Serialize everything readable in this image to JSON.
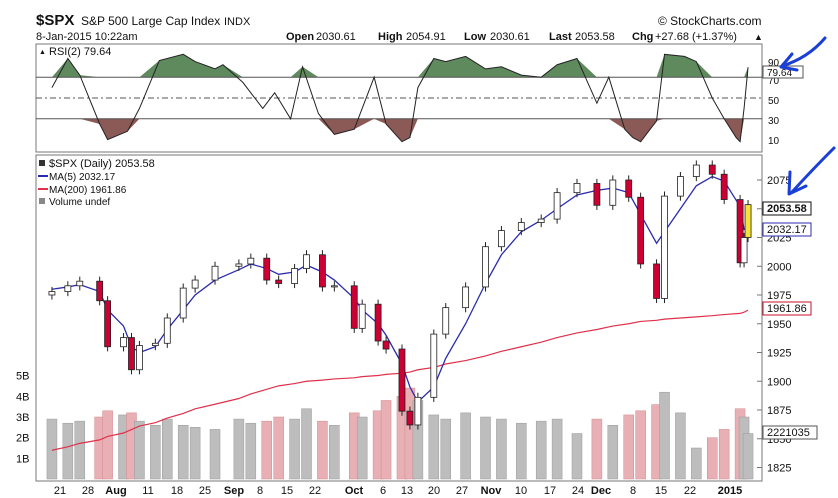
{
  "header": {
    "symbol": "$SPX",
    "name": "S&P 500 Large Cap Index",
    "exchange": "INDX",
    "date": "8-Jan-2015 10:22am",
    "brand": "© StockCharts.com",
    "open_label": "Open",
    "open": "2030.61",
    "high_label": "High",
    "high": "2054.91",
    "low_label": "Low",
    "low": "2030.61",
    "last_label": "Last",
    "last": "2053.58",
    "chg_label": "Chg",
    "chg": "+27.68 (+1.37%)",
    "chg_arrow": "▲"
  },
  "rsi_panel": {
    "legend_marker": "▲",
    "legend": "RSI(2) 79.64",
    "current_tag": "79.64",
    "ticks": [
      "90",
      "70",
      "50",
      "30",
      "10"
    ]
  },
  "price_panel": {
    "legend_main": "$SPX (Daily) 2053.58",
    "legend_ma5": "MA(5) 2032.17",
    "legend_ma200": "MA(200) 1961.86",
    "legend_volume": "Volume undef",
    "tag_last": "2053.58",
    "tag_ma5": "2032.17",
    "tag_ma200": "1961.86",
    "tag_volume": "2221035",
    "price_ticks": [
      "2075",
      "2050",
      "2025",
      "2000",
      "1975",
      "1950",
      "1925",
      "1900",
      "1875",
      "1850",
      "1825"
    ],
    "volume_ticks": [
      "5B",
      "4B",
      "3B",
      "2B",
      "1B"
    ]
  },
  "x_axis_labels": [
    "21",
    "28",
    "Aug",
    "11",
    "18",
    "25",
    "Sep",
    "8",
    "15",
    "22",
    "Oct",
    "6",
    "13",
    "20",
    "27",
    "Nov",
    "10",
    "17",
    "24",
    "Dec",
    "8",
    "15",
    "22",
    "2015"
  ],
  "colors": {
    "up_candle": "#ffffff",
    "down_candle": "#cc0033",
    "ma5": "#2b2bb0",
    "ma200": "#e0304a",
    "rsi_overbought_fill": "#5e8a5e",
    "rsi_oversold_fill": "#8c5a56",
    "volume_up": "#bdbdbd",
    "volume_down": "#e8b0b4",
    "annotation_arrow": "#1a3fd6"
  },
  "chart_data": [
    {
      "type": "line",
      "title": "RSI(2) 79.64",
      "ylim": [
        0,
        100
      ],
      "reference_lines": [
        70,
        50,
        30
      ],
      "x": [
        "2014-07-17",
        "2014-07-21",
        "2014-07-24",
        "2014-07-29",
        "2014-07-31",
        "2014-08-05",
        "2014-08-08",
        "2014-08-13",
        "2014-08-19",
        "2014-08-22",
        "2014-08-27",
        "2014-08-29",
        "2014-09-03",
        "2014-09-08",
        "2014-09-11",
        "2014-09-15",
        "2014-09-18",
        "2014-09-22",
        "2014-09-26",
        "2014-10-01",
        "2014-10-06",
        "2014-10-09",
        "2014-10-13",
        "2014-10-15",
        "2014-10-17",
        "2014-10-21",
        "2014-10-24",
        "2014-10-29",
        "2014-11-03",
        "2014-11-07",
        "2014-11-12",
        "2014-11-17",
        "2014-11-21",
        "2014-11-26",
        "2014-12-01",
        "2014-12-04",
        "2014-12-08",
        "2014-12-10",
        "2014-12-12",
        "2014-12-16",
        "2014-12-18",
        "2014-12-23",
        "2014-12-26",
        "2014-12-30",
        "2015-01-02",
        "2015-01-05",
        "2015-01-06",
        "2015-01-07",
        "2015-01-08"
      ],
      "values": [
        60,
        88,
        72,
        25,
        10,
        18,
        40,
        86,
        92,
        85,
        78,
        82,
        65,
        40,
        55,
        30,
        80,
        35,
        15,
        20,
        70,
        25,
        8,
        12,
        60,
        88,
        85,
        90,
        78,
        80,
        72,
        70,
        82,
        88,
        45,
        70,
        20,
        12,
        8,
        28,
        92,
        90,
        85,
        50,
        30,
        12,
        8,
        40,
        79.64
      ]
    },
    {
      "type": "candlestick",
      "title": "$SPX (Daily) 2053.58",
      "ylim": [
        1815,
        2095
      ],
      "x": [
        "2014-07-17",
        "2014-07-21",
        "2014-07-24",
        "2014-07-29",
        "2014-07-31",
        "2014-08-04",
        "2014-08-06",
        "2014-08-08",
        "2014-08-12",
        "2014-08-15",
        "2014-08-19",
        "2014-08-22",
        "2014-08-27",
        "2014-09-02",
        "2014-09-05",
        "2014-09-09",
        "2014-09-12",
        "2014-09-16",
        "2014-09-19",
        "2014-09-23",
        "2014-09-26",
        "2014-10-01",
        "2014-10-03",
        "2014-10-07",
        "2014-10-09",
        "2014-10-13",
        "2014-10-15",
        "2014-10-17",
        "2014-10-21",
        "2014-10-24",
        "2014-10-29",
        "2014-11-03",
        "2014-11-07",
        "2014-11-12",
        "2014-11-17",
        "2014-11-21",
        "2014-11-26",
        "2014-12-01",
        "2014-12-05",
        "2014-12-09",
        "2014-12-12",
        "2014-12-16",
        "2014-12-18",
        "2014-12-22",
        "2014-12-26",
        "2014-12-30",
        "2015-01-02",
        "2015-01-06",
        "2015-01-07",
        "2015-01-08"
      ],
      "close": [
        1978,
        1983,
        1987,
        1970,
        1930,
        1938,
        1910,
        1931,
        1933,
        1955,
        1981,
        1988,
        2000,
        2002,
        2007,
        1988,
        1985,
        1998,
        2010,
        1982,
        1983,
        1946,
        1967,
        1935,
        1928,
        1874,
        1862,
        1886,
        1941,
        1964,
        1982,
        2017,
        2031,
        2038,
        2041,
        2064,
        2072,
        2053,
        2075,
        2060,
        2002,
        1972,
        2061,
        2078,
        2088,
        2080,
        2058,
        2003,
        2025,
        2053.58
      ],
      "ma5": [
        1980,
        1982,
        1984,
        1978,
        1962,
        1948,
        1930,
        1925,
        1930,
        1945,
        1962,
        1975,
        1988,
        1997,
        2002,
        1998,
        1993,
        1995,
        2001,
        1995,
        1988,
        1972,
        1962,
        1950,
        1940,
        1915,
        1895,
        1882,
        1895,
        1920,
        1950,
        1985,
        2010,
        2030,
        2040,
        2050,
        2062,
        2066,
        2068,
        2064,
        2045,
        2020,
        2030,
        2050,
        2070,
        2078,
        2074,
        2052,
        2032,
        2032.17
      ],
      "ma200": [
        1840,
        1843,
        1846,
        1849,
        1852,
        1855,
        1858,
        1861,
        1864,
        1868,
        1872,
        1876,
        1880,
        1885,
        1889,
        1893,
        1896,
        1898,
        1900,
        1901,
        1902,
        1903,
        1904,
        1905,
        1906,
        1907,
        1908,
        1910,
        1912,
        1915,
        1918,
        1922,
        1926,
        1930,
        1934,
        1938,
        1942,
        1945,
        1948,
        1950,
        1952,
        1953,
        1954,
        1955,
        1956,
        1957,
        1958,
        1959,
        1960,
        1961.86
      ]
    },
    {
      "type": "bar",
      "title": "Volume undef",
      "ylim": [
        0,
        6
      ],
      "unit": "B",
      "x": [
        "2014-07-17",
        "2014-07-21",
        "2014-07-24",
        "2014-07-29",
        "2014-07-31",
        "2014-08-04",
        "2014-08-06",
        "2014-08-08",
        "2014-08-12",
        "2014-08-15",
        "2014-08-19",
        "2014-08-22",
        "2014-08-27",
        "2014-09-02",
        "2014-09-05",
        "2014-09-09",
        "2014-09-12",
        "2014-09-16",
        "2014-09-19",
        "2014-09-23",
        "2014-09-26",
        "2014-10-01",
        "2014-10-03",
        "2014-10-07",
        "2014-10-09",
        "2014-10-13",
        "2014-10-15",
        "2014-10-17",
        "2014-10-21",
        "2014-10-24",
        "2014-10-29",
        "2014-11-03",
        "2014-11-07",
        "2014-11-12",
        "2014-11-17",
        "2014-11-21",
        "2014-11-26",
        "2014-12-01",
        "2014-12-05",
        "2014-12-09",
        "2014-12-12",
        "2014-12-16",
        "2014-12-18",
        "2014-12-22",
        "2014-12-26",
        "2014-12-30",
        "2015-01-02",
        "2015-01-06",
        "2015-01-07",
        "2015-01-08"
      ],
      "values": [
        2.9,
        2.7,
        2.8,
        3.0,
        3.3,
        3.1,
        3.2,
        2.8,
        2.6,
        2.9,
        2.6,
        2.5,
        2.4,
        2.9,
        2.7,
        2.8,
        3.0,
        2.9,
        3.4,
        2.8,
        2.6,
        3.2,
        3.0,
        3.3,
        3.8,
        4.0,
        4.4,
        3.8,
        3.1,
        2.9,
        3.2,
        3.0,
        2.9,
        2.7,
        2.8,
        2.9,
        2.2,
        2.9,
        2.6,
        3.1,
        3.3,
        3.6,
        4.2,
        3.2,
        1.5,
        2.0,
        2.4,
        3.4,
        3.0,
        2.2
      ],
      "down": [
        false,
        false,
        false,
        true,
        true,
        false,
        true,
        false,
        false,
        false,
        false,
        false,
        false,
        false,
        false,
        true,
        true,
        false,
        false,
        true,
        false,
        true,
        false,
        true,
        true,
        true,
        true,
        false,
        false,
        false,
        false,
        false,
        false,
        false,
        false,
        false,
        false,
        true,
        false,
        true,
        true,
        true,
        false,
        false,
        false,
        true,
        true,
        true,
        false,
        false
      ]
    }
  ]
}
